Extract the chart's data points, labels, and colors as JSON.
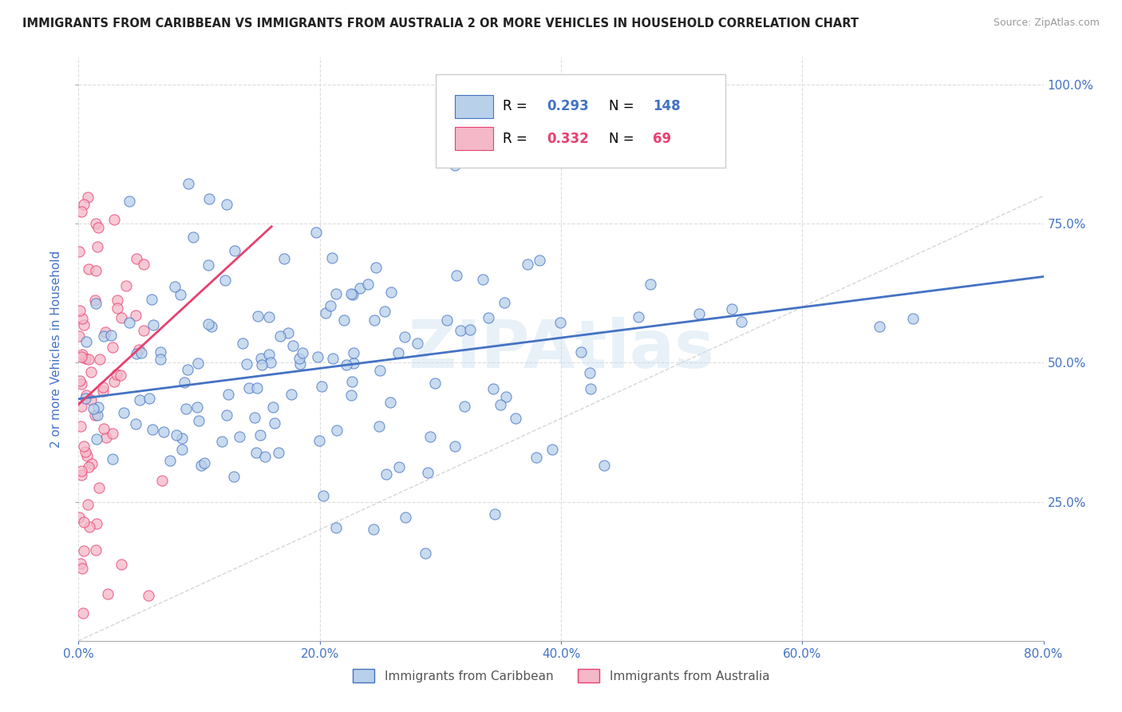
{
  "title": "IMMIGRANTS FROM CARIBBEAN VS IMMIGRANTS FROM AUSTRALIA 2 OR MORE VEHICLES IN HOUSEHOLD CORRELATION CHART",
  "source": "Source: ZipAtlas.com",
  "ylabel": "2 or more Vehicles in Household",
  "xlim": [
    0.0,
    0.8
  ],
  "ylim": [
    0.0,
    1.05
  ],
  "xtick_labels": [
    "0.0%",
    "20.0%",
    "40.0%",
    "60.0%",
    "80.0%"
  ],
  "xtick_values": [
    0.0,
    0.2,
    0.4,
    0.6,
    0.8
  ],
  "ytick_labels": [
    "25.0%",
    "50.0%",
    "75.0%",
    "100.0%"
  ],
  "ytick_values": [
    0.25,
    0.5,
    0.75,
    1.0
  ],
  "caribbean_R": 0.293,
  "caribbean_N": 148,
  "australia_R": 0.332,
  "australia_N": 69,
  "caribbean_color": "#b8d0ea",
  "australia_color": "#f4b8c8",
  "caribbean_line_color": "#4472c4",
  "australia_line_color": "#e84070",
  "diagonal_color": "#cccccc",
  "title_color": "#222222",
  "axis_label_color": "#4472c4",
  "tick_color": "#4472c4",
  "watermark": "ZIPAtlas",
  "caribbean_trend_x": [
    0.0,
    0.8
  ],
  "caribbean_trend_y": [
    0.435,
    0.655
  ],
  "australia_trend_x": [
    0.0,
    0.16
  ],
  "australia_trend_y": [
    0.425,
    0.745
  ]
}
